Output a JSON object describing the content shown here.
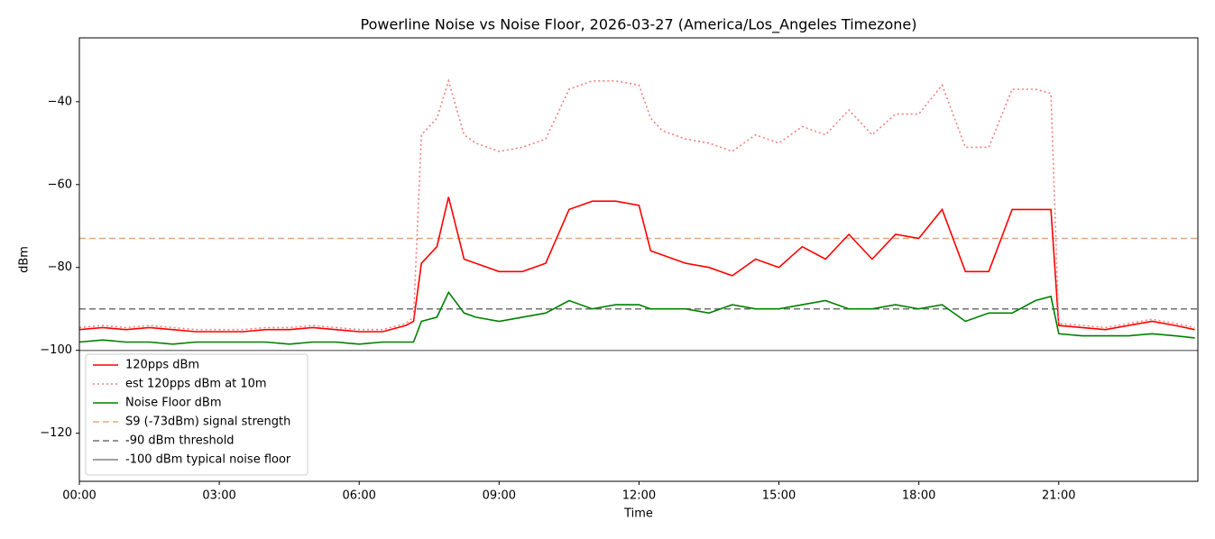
{
  "chart_data": {
    "type": "line",
    "title": "Powerline Noise vs Noise Floor, 2026-03-27 (America/Los_Angeles Timezone)",
    "x_label": "Time",
    "y_label": "dBm",
    "y_label_color": "#ff0000",
    "x": [
      "00:00",
      "00:30",
      "01:00",
      "01:30",
      "02:00",
      "02:30",
      "03:00",
      "03:30",
      "04:00",
      "04:30",
      "05:00",
      "05:30",
      "06:00",
      "06:30",
      "07:00",
      "07:10",
      "07:20",
      "07:40",
      "07:55",
      "08:15",
      "08:30",
      "09:00",
      "09:30",
      "10:00",
      "10:30",
      "11:00",
      "11:30",
      "12:00",
      "12:15",
      "12:30",
      "13:00",
      "13:30",
      "14:00",
      "14:30",
      "15:00",
      "15:30",
      "16:00",
      "16:30",
      "17:00",
      "17:30",
      "18:00",
      "18:30",
      "19:00",
      "19:30",
      "20:00",
      "20:30",
      "20:50",
      "21:00",
      "21:30",
      "22:00",
      "22:30",
      "23:00",
      "23:30",
      "23:55"
    ],
    "series": [
      {
        "name": "120pps dBm",
        "color": "#ff0000",
        "style": "solid",
        "values": [
          -95,
          -94.5,
          -95,
          -94.5,
          -95,
          -95.5,
          -95.5,
          -95.5,
          -95,
          -95,
          -94.5,
          -95,
          -95.5,
          -95.5,
          -94,
          -93,
          -79,
          -75,
          -63,
          -78,
          -79,
          -81,
          -81,
          -79,
          -66,
          -64,
          -64,
          -65,
          -76,
          -77,
          -79,
          -80,
          -82,
          -78,
          -80,
          -75,
          -78,
          -72,
          -78,
          -72,
          -73,
          -66,
          -81,
          -81,
          -66,
          -66,
          -66,
          -94,
          -94.5,
          -95,
          -94,
          -93,
          -94,
          -95
        ]
      },
      {
        "name": "est 120pps dBm at 10m",
        "color": "#f08080",
        "style": "dotted",
        "values": [
          -94.5,
          -94,
          -94.5,
          -94,
          -94.5,
          -95,
          -95,
          -95,
          -94.5,
          -94.5,
          -94,
          -94.5,
          -95,
          -95,
          -93.5,
          -92,
          -48,
          -44,
          -35,
          -48,
          -50,
          -52,
          -51,
          -49,
          -37,
          -35,
          -35,
          -36,
          -44,
          -47,
          -49,
          -50,
          -52,
          -48,
          -50,
          -46,
          -48,
          -42,
          -48,
          -43,
          -43,
          -36,
          -51,
          -51,
          -37,
          -37,
          -38,
          -93.5,
          -94,
          -94.5,
          -93.5,
          -92.5,
          -93.5,
          -94.5
        ]
      },
      {
        "name": "Noise Floor dBm",
        "color": "#008000",
        "style": "solid",
        "values": [
          -98,
          -97.5,
          -98,
          -98,
          -98.5,
          -98,
          -98,
          -98,
          -98,
          -98.5,
          -98,
          -98,
          -98.5,
          -98,
          -98,
          -98,
          -93,
          -92,
          -86,
          -91,
          -92,
          -93,
          -92,
          -91,
          -88,
          -90,
          -89,
          -89,
          -90,
          -90,
          -90,
          -91,
          -89,
          -90,
          -90,
          -89,
          -88,
          -90,
          -90,
          -89,
          -90,
          -89,
          -93,
          -91,
          -91,
          -88,
          -87,
          -96,
          -96.5,
          -96.5,
          -96.5,
          -96,
          -96.5,
          -97
        ]
      }
    ],
    "hlines": [
      {
        "name": "S9 (-73dBm) signal strength",
        "value": -73,
        "color": "#e0a882",
        "style": "dashed"
      },
      {
        "name": "-90 dBm threshold",
        "value": -90,
        "color": "#707070",
        "style": "dashed"
      },
      {
        "name": "-100 dBm typical noise floor",
        "value": -100,
        "color": "#808080",
        "style": "solid"
      }
    ],
    "xlim": [
      "00:00",
      "23:59"
    ],
    "xticks": [
      "00:00",
      "03:00",
      "06:00",
      "09:00",
      "12:00",
      "15:00",
      "18:00",
      "21:00"
    ],
    "ylim": [
      -131.6,
      -24.6
    ],
    "yticks": [
      {
        "value": -120,
        "label": "−120"
      },
      {
        "value": -100,
        "label": "−100"
      },
      {
        "value": -80,
        "label": "−80"
      },
      {
        "value": -60,
        "label": "−60"
      },
      {
        "value": -40,
        "label": "−40"
      }
    ],
    "ytick_color": "#ff0000",
    "legend": "lower left"
  }
}
